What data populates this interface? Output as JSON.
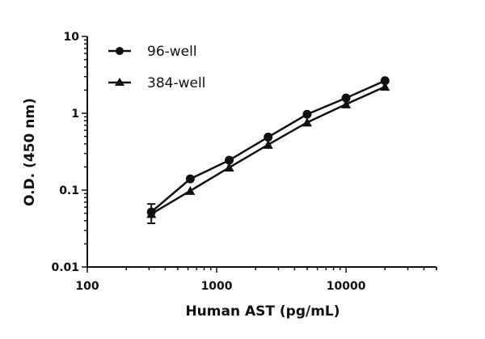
{
  "chart_data": {
    "type": "line",
    "title": "",
    "xlabel": "Human AST (pg/mL)",
    "ylabel": "O.D. (450 nm)",
    "xscale": "log",
    "yscale": "log",
    "xlim": [
      100,
      50000
    ],
    "ylim": [
      0.01,
      10
    ],
    "xticks": [
      100,
      1000,
      10000
    ],
    "xtick_labels": [
      "100",
      "1000",
      "10000"
    ],
    "yticks": [
      0.01,
      0.1,
      1,
      10
    ],
    "ytick_labels": [
      "0.01",
      "0.1",
      "1",
      "10"
    ],
    "grid": false,
    "legend_position": "top-left",
    "x": [
      312.5,
      625,
      1250,
      2500,
      5000,
      10000,
      20000
    ],
    "series": [
      {
        "name": "96-well",
        "marker": "circle",
        "values": [
          0.052,
          0.14,
          0.245,
          0.49,
          0.97,
          1.58,
          2.65
        ],
        "error_low": [
          0.037,
          null,
          null,
          null,
          null,
          null,
          null
        ],
        "error_high": [
          0.066,
          null,
          null,
          null,
          null,
          null,
          null
        ]
      },
      {
        "name": "384-well",
        "marker": "triangle",
        "values": [
          0.049,
          0.098,
          0.197,
          0.39,
          0.76,
          1.31,
          2.22
        ]
      }
    ],
    "color": "#111111"
  }
}
